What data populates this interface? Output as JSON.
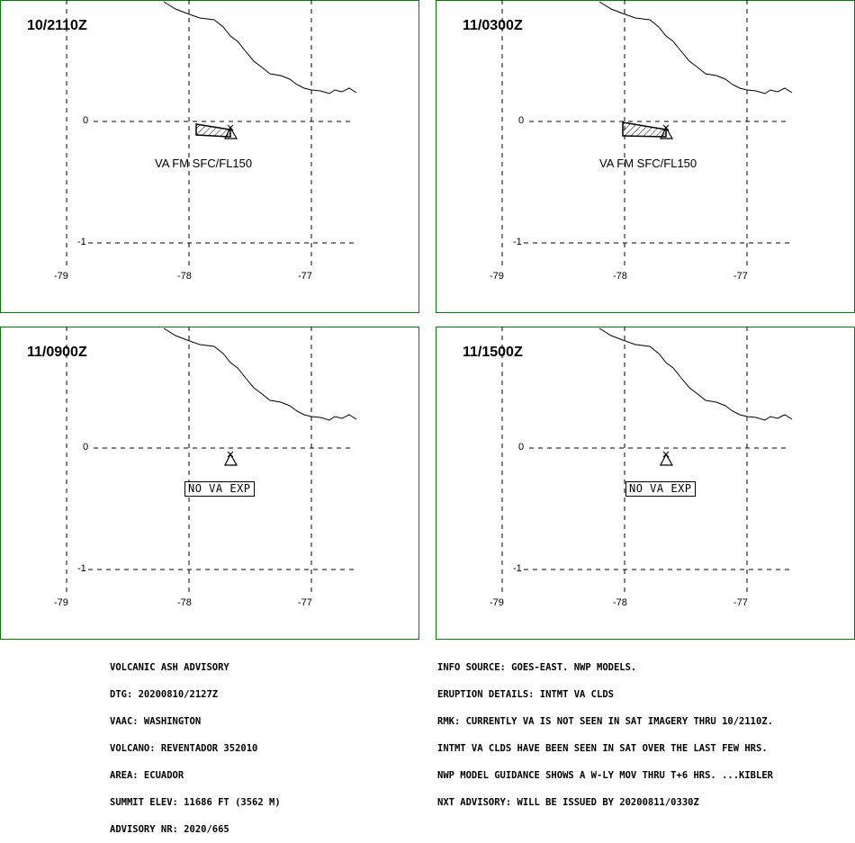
{
  "panels": [
    {
      "time": "10/2110Z",
      "va": "VA FM SFC/FL150",
      "nova": ""
    },
    {
      "time": "11/0300Z",
      "va": "VA FM SFC/FL150",
      "nova": ""
    },
    {
      "time": "11/0900Z",
      "va": "",
      "nova": "NO VA EXP"
    },
    {
      "time": "11/1500Z",
      "va": "",
      "nova": "NO VA EXP"
    }
  ],
  "axes": {
    "lat_labels": [
      "0",
      "-1"
    ],
    "lon_labels": [
      "-79",
      "-78",
      "-77"
    ]
  },
  "advisory": {
    "left": [
      "VOLCANIC ASH ADVISORY",
      "DTG: 20200810/2127Z",
      "VAAC: WASHINGTON",
      "VOLCANO: REVENTADOR 352010",
      "AREA: ECUADOR",
      "SUMMIT ELEV: 11686 FT (3562 M)",
      "ADVISORY NR: 2020/665"
    ],
    "right": [
      "INFO SOURCE: GOES-EAST. NWP MODELS.",
      "ERUPTION DETAILS: INTMT VA CLDS",
      "RMK: CURRENTLY VA IS NOT SEEN IN SAT IMAGERY THRU 10/2110Z.",
      "INTMT VA CLDS HAVE BEEN SEEN IN SAT OVER THE LAST FEW HRS.",
      "NWP MODEL GUIDANCE SHOWS A W-LY MOV THRU T+6 HRS. ...KIBLER",
      "NXT ADVISORY: WILL BE ISSUED BY 20200811/0330Z"
    ]
  },
  "colors": {
    "frame": "#008000",
    "ink": "#000000"
  }
}
